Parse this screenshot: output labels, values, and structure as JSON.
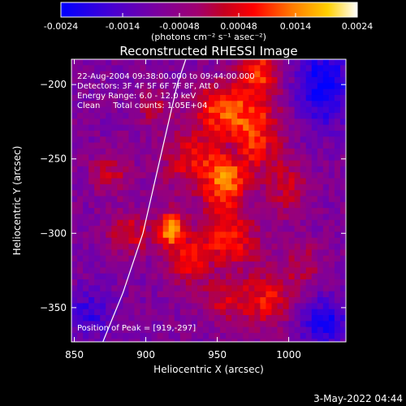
{
  "chart_data": {
    "type": "heatmap",
    "title": "Reconstructed RHESSI Image",
    "xlabel": "Heliocentric X (arcsec)",
    "ylabel": "Heliocentric Y (arcsec)",
    "xlim": [
      848,
      1040
    ],
    "ylim": [
      -373,
      -183
    ],
    "x_ticks": [
      850,
      900,
      950,
      1000
    ],
    "y_ticks": [
      -350,
      -300,
      -250,
      -200
    ],
    "colorbar": {
      "range": [
        -0.0024,
        0.0024
      ],
      "tick_values": [
        -0.0024,
        -0.0014,
        -0.00048,
        0.00048,
        0.0014,
        0.0024
      ],
      "tick_labels": [
        "-0.0024",
        "-0.0014",
        "-0.00048",
        "0.00048",
        "0.0014",
        "0.0024"
      ],
      "units_label": "(photons cm⁻² s⁻¹ asec⁻²)"
    },
    "annotations": [
      "22-Aug-2004 09:38:00.000 to 09:44:00.000",
      "Detectors: 3F 4F 5F 6F 7F 8F, Att 0",
      "Energy Range: 6.0 - 12.0 keV",
      "Clean     Total counts: 1.05E+04"
    ],
    "peak_label": "Position of Peak = [919,-297]",
    "peak": [
      919,
      -297
    ],
    "limb": [
      [
        870,
        -373
      ],
      [
        884,
        -340
      ],
      [
        898,
        -300
      ],
      [
        910,
        -250
      ],
      [
        922,
        -200
      ],
      [
        928,
        -183
      ]
    ],
    "sources": [
      {
        "x": 918,
        "y": -297,
        "amp": 0.0024,
        "sx": 6,
        "sy": 8
      },
      {
        "x": 955,
        "y": -265,
        "amp": 0.0019,
        "sx": 10,
        "sy": 18
      },
      {
        "x": 975,
        "y": -230,
        "amp": 0.0017,
        "sx": 14,
        "sy": 22
      },
      {
        "x": 950,
        "y": -215,
        "amp": 0.0016,
        "sx": 12,
        "sy": 10
      },
      {
        "x": 930,
        "y": -250,
        "amp": 0.0012,
        "sx": 14,
        "sy": 16
      },
      {
        "x": 980,
        "y": -190,
        "amp": 0.0014,
        "sx": 10,
        "sy": 10
      },
      {
        "x": 958,
        "y": -305,
        "amp": 0.0014,
        "sx": 16,
        "sy": 12
      },
      {
        "x": 930,
        "y": -320,
        "amp": 0.0013,
        "sx": 10,
        "sy": 12
      },
      {
        "x": 985,
        "y": -345,
        "amp": 0.0014,
        "sx": 14,
        "sy": 14
      },
      {
        "x": 955,
        "y": -345,
        "amp": 0.001,
        "sx": 10,
        "sy": 10
      },
      {
        "x": 890,
        "y": -300,
        "amp": 0.0011,
        "sx": 12,
        "sy": 10
      },
      {
        "x": 875,
        "y": -260,
        "amp": 0.001,
        "sx": 10,
        "sy": 10
      },
      {
        "x": 905,
        "y": -215,
        "amp": 0.0009,
        "sx": 8,
        "sy": 8
      },
      {
        "x": 1000,
        "y": -270,
        "amp": 0.0009,
        "sx": 10,
        "sy": 14
      },
      {
        "x": 1010,
        "y": -320,
        "amp": 0.0008,
        "sx": 10,
        "sy": 10
      },
      {
        "x": 960,
        "y": -245,
        "amp": -0.0012,
        "sx": 6,
        "sy": 6
      },
      {
        "x": 1025,
        "y": -200,
        "amp": -0.0016,
        "sx": 14,
        "sy": 20
      },
      {
        "x": 1025,
        "y": -360,
        "amp": -0.0014,
        "sx": 14,
        "sy": 12
      },
      {
        "x": 860,
        "y": -355,
        "amp": -0.001,
        "sx": 12,
        "sy": 12
      }
    ]
  },
  "footer": {
    "date_stamp": "3-May-2022 04:44"
  }
}
